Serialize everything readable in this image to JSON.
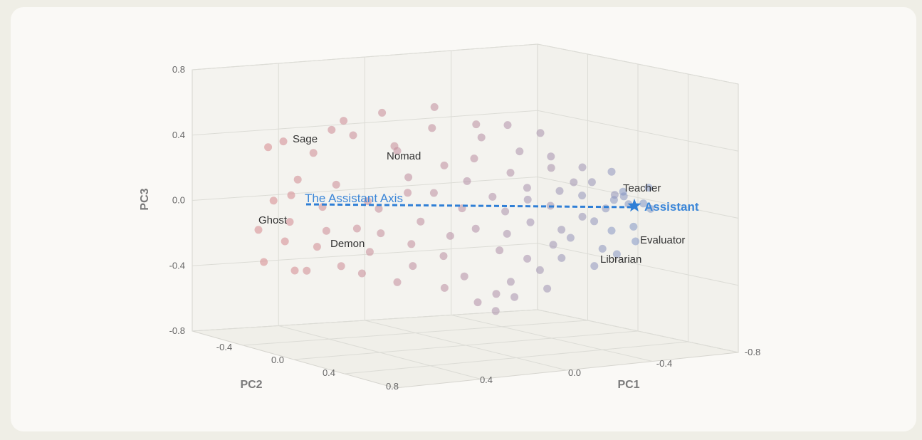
{
  "chart_data": {
    "type": "scatter3d",
    "title": "",
    "axes": {
      "x": {
        "label": "PC1",
        "ticks": [
          "0.0",
          "-0.4",
          "-0.8"
        ],
        "tick_values": [
          0.0,
          -0.4,
          -0.8
        ]
      },
      "y": {
        "label": "PC2",
        "ticks": [
          "-0.4",
          "0.0",
          "0.4",
          "0.8"
        ],
        "tick_values": [
          -0.4,
          0.0,
          0.4,
          0.8
        ]
      },
      "z": {
        "label": "PC3",
        "ticks": [
          "0.8",
          "0.4",
          "0.0",
          "-0.4",
          "-0.8"
        ],
        "tick_values": [
          0.8,
          0.4,
          0.0,
          -0.4,
          -0.8
        ]
      },
      "x_tick_extra": {
        "label": "0.4",
        "value": 0.4
      }
    },
    "color_scale": {
      "low": "#d9868a",
      "high": "#7f97c8"
    },
    "points": [
      [
        -0.02,
        0.36,
        0.35,
        0.05
      ],
      [
        0.03,
        0.3,
        0.38,
        0.08
      ],
      [
        0.1,
        0.42,
        0.32,
        0.12
      ],
      [
        0.18,
        0.18,
        0.44,
        0.15
      ],
      [
        0.25,
        0.1,
        0.4,
        0.18
      ],
      [
        0.33,
        0.4,
        0.36,
        0.22
      ],
      [
        0.38,
        0.05,
        0.3,
        0.25
      ],
      [
        0.45,
        0.28,
        0.46,
        0.28
      ],
      [
        0.5,
        0.15,
        0.22,
        0.3
      ],
      [
        0.56,
        0.35,
        0.28,
        0.35
      ],
      [
        0.62,
        0.02,
        0.38,
        0.4
      ],
      [
        0.68,
        0.2,
        0.18,
        0.45
      ],
      [
        0.72,
        0.08,
        0.3,
        0.5
      ],
      [
        0.78,
        0.32,
        0.22,
        0.55
      ],
      [
        0.82,
        -0.02,
        0.26,
        0.58
      ],
      [
        0.86,
        0.18,
        0.12,
        0.62
      ],
      [
        0.9,
        0.05,
        0.2,
        0.65
      ],
      [
        0.94,
        -0.06,
        0.1,
        0.72
      ],
      [
        0.98,
        0.14,
        0.04,
        0.78
      ],
      [
        1.0,
        -0.1,
        0.16,
        0.82
      ],
      [
        1.02,
        0.02,
        0.02,
        0.88
      ],
      [
        1.05,
        -0.12,
        -0.04,
        0.92
      ],
      [
        1.08,
        0.1,
        0.08,
        0.95
      ],
      [
        1.1,
        -0.02,
        -0.06,
        0.98
      ],
      [
        0.0,
        0.32,
        0.02,
        0.05
      ],
      [
        0.04,
        0.4,
        0.06,
        0.06
      ],
      [
        0.08,
        0.22,
        0.14,
        0.1
      ],
      [
        0.14,
        0.3,
        -0.02,
        0.12
      ],
      [
        0.2,
        0.12,
        0.1,
        0.16
      ],
      [
        0.26,
        0.36,
        0.02,
        0.2
      ],
      [
        0.31,
        0.2,
        -0.04,
        0.24
      ],
      [
        0.36,
        0.46,
        0.08,
        0.26
      ],
      [
        0.41,
        0.06,
        0.14,
        0.3
      ],
      [
        0.46,
        0.24,
        0.06,
        0.33
      ],
      [
        0.52,
        0.4,
        -0.02,
        0.36
      ],
      [
        0.57,
        0.1,
        0.12,
        0.42
      ],
      [
        0.62,
        0.28,
        0.04,
        0.46
      ],
      [
        0.67,
        0.16,
        -0.06,
        0.52
      ],
      [
        0.71,
        0.34,
        0.1,
        0.55
      ],
      [
        0.75,
        0.02,
        0.0,
        0.6
      ],
      [
        0.79,
        0.22,
        -0.02,
        0.64
      ],
      [
        0.83,
        0.1,
        0.06,
        0.7
      ],
      [
        0.87,
        0.3,
        -0.08,
        0.72
      ],
      [
        0.91,
        -0.04,
        0.02,
        0.78
      ],
      [
        0.95,
        0.18,
        -0.04,
        0.84
      ],
      [
        0.99,
        0.04,
        0.0,
        0.88
      ],
      [
        1.03,
        -0.08,
        0.04,
        0.93
      ],
      [
        1.07,
        0.06,
        -0.02,
        0.97
      ],
      [
        -0.04,
        0.3,
        -0.16,
        0.04
      ],
      [
        0.02,
        0.42,
        -0.22,
        0.06
      ],
      [
        0.06,
        0.2,
        -0.12,
        0.08
      ],
      [
        0.12,
        0.34,
        -0.26,
        0.1
      ],
      [
        0.17,
        0.14,
        -0.18,
        0.14
      ],
      [
        0.22,
        0.44,
        -0.14,
        0.18
      ],
      [
        0.28,
        0.24,
        -0.3,
        0.21
      ],
      [
        0.33,
        0.08,
        -0.2,
        0.24
      ],
      [
        0.38,
        0.38,
        -0.24,
        0.27
      ],
      [
        0.43,
        0.18,
        -0.12,
        0.31
      ],
      [
        0.48,
        0.3,
        -0.32,
        0.35
      ],
      [
        0.53,
        0.04,
        -0.22,
        0.39
      ],
      [
        0.58,
        0.22,
        -0.16,
        0.44
      ],
      [
        0.63,
        0.36,
        -0.28,
        0.47
      ],
      [
        0.68,
        0.12,
        -0.2,
        0.53
      ],
      [
        0.72,
        0.26,
        -0.34,
        0.56
      ],
      [
        0.76,
        0.0,
        -0.14,
        0.61
      ],
      [
        0.8,
        0.2,
        -0.26,
        0.66
      ],
      [
        0.84,
        0.06,
        -0.18,
        0.7
      ],
      [
        0.88,
        -0.06,
        -0.24,
        0.76
      ],
      [
        0.92,
        0.16,
        -0.12,
        0.8
      ],
      [
        0.96,
        0.02,
        -0.3,
        0.84
      ],
      [
        1.0,
        -0.1,
        -0.2,
        0.9
      ],
      [
        1.04,
        0.08,
        -0.16,
        0.94
      ],
      [
        1.06,
        -0.04,
        -0.26,
        0.96
      ],
      [
        -0.02,
        0.26,
        -0.36,
        0.05
      ],
      [
        0.05,
        0.4,
        -0.4,
        0.07
      ],
      [
        0.11,
        0.18,
        -0.42,
        0.1
      ],
      [
        0.19,
        0.32,
        -0.38,
        0.15
      ],
      [
        0.27,
        0.14,
        -0.44,
        0.2
      ],
      [
        0.35,
        0.3,
        -0.48,
        0.25
      ],
      [
        0.42,
        0.08,
        -0.4,
        0.3
      ],
      [
        0.49,
        0.24,
        -0.52,
        0.36
      ],
      [
        0.56,
        0.12,
        -0.46,
        0.42
      ],
      [
        0.64,
        0.2,
        -0.56,
        0.48
      ],
      [
        0.7,
        0.04,
        -0.5,
        0.54
      ],
      [
        0.77,
        0.14,
        -0.42,
        0.62
      ],
      [
        0.85,
        -0.02,
        -0.36,
        0.72
      ],
      [
        0.93,
        0.08,
        -0.4,
        0.82
      ],
      [
        1.01,
        -0.06,
        -0.34,
        0.91
      ],
      [
        0.18,
        0.46,
        0.52,
        0.14
      ],
      [
        0.3,
        0.36,
        0.56,
        0.2
      ],
      [
        0.44,
        0.42,
        0.6,
        0.28
      ],
      [
        0.55,
        0.48,
        0.5,
        0.34
      ],
      [
        0.66,
        0.3,
        0.48,
        0.46
      ],
      [
        0.74,
        0.4,
        0.44,
        0.54
      ],
      [
        0.6,
        0.1,
        -0.62,
        0.44
      ],
      [
        0.66,
        0.02,
        -0.68,
        0.5
      ],
      [
        0.72,
        -0.04,
        -0.6,
        0.56
      ],
      [
        0.8,
        0.06,
        -0.54,
        0.66
      ]
    ],
    "point_encoding": [
      "pc1_screen_order",
      "pc2",
      "pc3",
      "color_mix"
    ],
    "axis_line": {
      "label": "The Assistant Axis",
      "style": "dashed",
      "color": "#2f7fd6"
    },
    "highlight": {
      "label": "Assistant",
      "marker": "star",
      "color": "#2f7fd6"
    },
    "annotations": [
      "Sage",
      "Nomad",
      "Ghost",
      "Demon",
      "Teacher",
      "Evaluator",
      "Librarian"
    ]
  },
  "colors": {
    "background": "#efeee6",
    "card": "#faf9f6",
    "grid": "#dcdcd6",
    "accent": "#2f7fd6"
  }
}
